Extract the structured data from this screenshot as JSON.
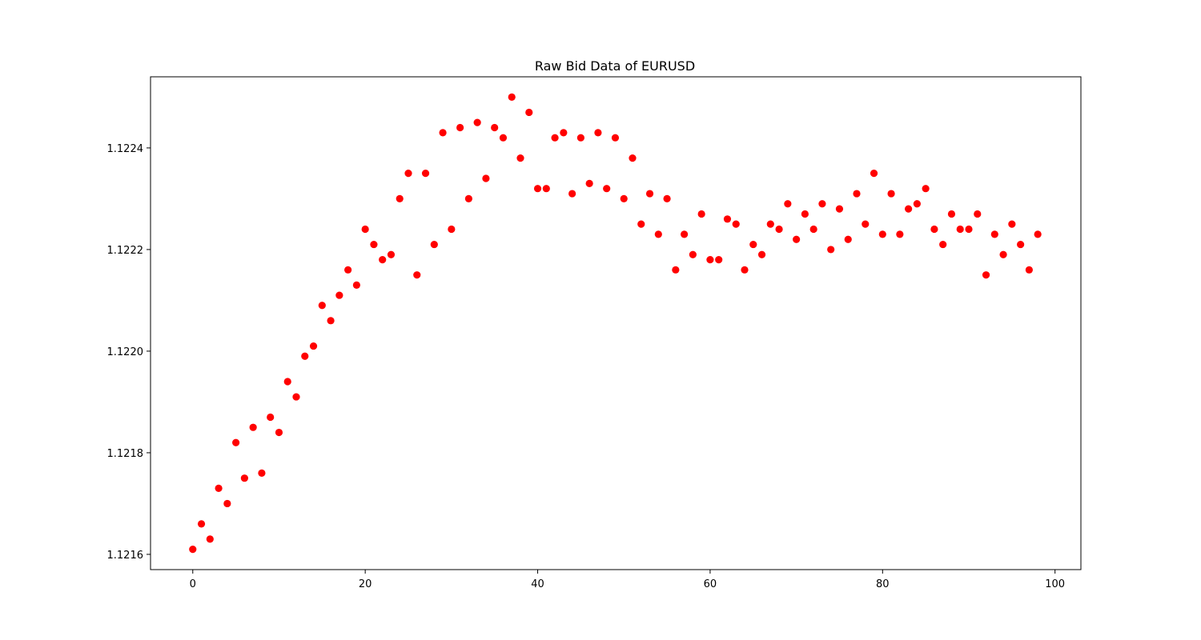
{
  "chart_data": {
    "type": "scatter",
    "title": "Raw Bid Data of EURUSD",
    "xlabel": "",
    "ylabel": "",
    "xlim": [
      -4.9,
      103
    ],
    "ylim": [
      1.12157,
      1.12254
    ],
    "x_ticks": [
      0,
      20,
      40,
      60,
      80,
      100
    ],
    "x_tick_labels": [
      "0",
      "20",
      "40",
      "60",
      "80",
      "100"
    ],
    "y_ticks": [
      1.1216,
      1.1218,
      1.122,
      1.1222,
      1.1224
    ],
    "y_tick_labels": [
      "1.1216",
      "1.1218",
      "1.1220",
      "1.1222",
      "1.1224"
    ],
    "grid": false,
    "marker_color": "#ff0000",
    "x": [
      0,
      1,
      2,
      3,
      4,
      5,
      6,
      7,
      8,
      9,
      10,
      11,
      12,
      13,
      14,
      15,
      16,
      17,
      18,
      19,
      20,
      21,
      22,
      23,
      24,
      25,
      26,
      27,
      28,
      29,
      30,
      31,
      32,
      33,
      34,
      35,
      36,
      37,
      38,
      39,
      40,
      41,
      42,
      43,
      44,
      45,
      46,
      47,
      48,
      49,
      50,
      51,
      52,
      53,
      54,
      55,
      56,
      57,
      58,
      59,
      60,
      61,
      62,
      63,
      64,
      65,
      66,
      67,
      68,
      69,
      70,
      71,
      72,
      73,
      74,
      75,
      76,
      77,
      78,
      79,
      80,
      81,
      82,
      83,
      84,
      85,
      86,
      87,
      88,
      89,
      90,
      91,
      92,
      93,
      94,
      95,
      96,
      97,
      98
    ],
    "y": [
      1.12161,
      1.12166,
      1.12163,
      1.12173,
      1.1217,
      1.12182,
      1.12175,
      1.12185,
      1.12176,
      1.12187,
      1.12184,
      1.12194,
      1.12191,
      1.12199,
      1.12201,
      1.12209,
      1.12206,
      1.12211,
      1.12216,
      1.12213,
      1.12224,
      1.12221,
      1.12218,
      1.12219,
      1.1223,
      1.12235,
      1.12215,
      1.12235,
      1.12221,
      1.12243,
      1.12224,
      1.12244,
      1.1223,
      1.12245,
      1.12234,
      1.12244,
      1.12242,
      1.1225,
      1.12238,
      1.12247,
      1.12232,
      1.12232,
      1.12242,
      1.12243,
      1.12231,
      1.12242,
      1.12233,
      1.12243,
      1.12232,
      1.12242,
      1.1223,
      1.12238,
      1.12225,
      1.12231,
      1.12223,
      1.1223,
      1.12216,
      1.12223,
      1.12219,
      1.12227,
      1.12218,
      1.12218,
      1.12226,
      1.12225,
      1.12216,
      1.12221,
      1.12219,
      1.12225,
      1.12224,
      1.12229,
      1.12222,
      1.12227,
      1.12224,
      1.12229,
      1.1222,
      1.12228,
      1.12222,
      1.12231,
      1.12225,
      1.12235,
      1.12223,
      1.12231,
      1.12223,
      1.12228,
      1.12229,
      1.12232,
      1.12224,
      1.12221,
      1.12227,
      1.12224,
      1.12224,
      1.12227,
      1.12215,
      1.12223,
      1.12219,
      1.12225,
      1.12221,
      1.12216,
      1.12223
    ]
  }
}
